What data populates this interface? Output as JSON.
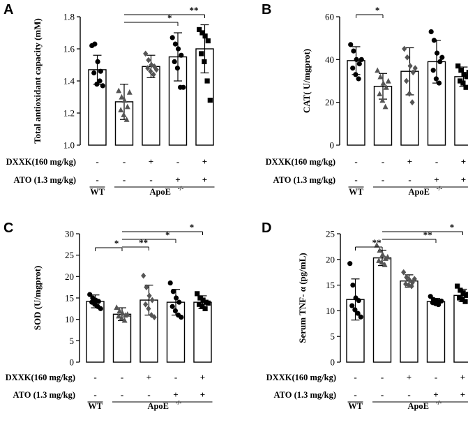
{
  "figure": {
    "row_labels": {
      "dxxk": "DXXK(160 mg/kg)",
      "ato": "ATO (1.3 mg/kg)"
    },
    "group_labels": {
      "wt": "WT",
      "apoe": "ApoE",
      "apoe_sup": "-/-"
    }
  },
  "chart_data": [
    {
      "type": "bar",
      "panel": "A",
      "title": "",
      "ylabel": "Total antioxidant capacity (mM)",
      "ylim": [
        1.0,
        1.8
      ],
      "yticks": [
        1.0,
        1.2,
        1.4,
        1.6,
        1.8
      ],
      "ytick_labels": [
        "1.0",
        "1.2",
        "1.4",
        "1.6",
        "1.8"
      ],
      "categories": [
        "WT",
        "ApoE-/-",
        "ApoE-/- + DXXK",
        "ApoE-/- + ATO",
        "ApoE-/- + DXXK + ATO"
      ],
      "dxxk_signs": [
        "-",
        "-",
        "+",
        "-",
        "+"
      ],
      "ato_signs": [
        "-",
        "-",
        "-",
        "+",
        "+"
      ],
      "values": [
        1.47,
        1.27,
        1.49,
        1.55,
        1.6
      ],
      "errors": [
        0.09,
        0.11,
        0.07,
        0.15,
        0.15
      ],
      "markers": [
        "circle",
        "triangle",
        "diamond",
        "circle",
        "square"
      ],
      "points": [
        [
          1.62,
          1.63,
          1.52,
          1.46,
          1.45,
          1.38,
          1.4,
          1.37
        ],
        [
          1.34,
          1.3,
          1.28,
          1.24,
          1.22,
          1.19,
          1.16,
          1.33
        ],
        [
          1.57,
          1.53,
          1.5,
          1.49,
          1.48,
          1.46,
          1.44,
          1.47
        ],
        [
          1.67,
          1.63,
          1.6,
          1.56,
          1.52,
          1.48,
          1.36,
          1.36
        ],
        [
          1.72,
          1.7,
          1.68,
          1.65,
          1.57,
          1.52,
          1.4,
          1.28
        ]
      ],
      "significance": [
        {
          "from": 1,
          "to": 3,
          "label": "*"
        },
        {
          "from": 1,
          "to": 4,
          "label": "**"
        }
      ]
    },
    {
      "type": "bar",
      "panel": "B",
      "title": "",
      "ylabel": "CAT( U/mgprot)",
      "ylim": [
        0,
        60
      ],
      "yticks": [
        0,
        20,
        40,
        60
      ],
      "ytick_labels": [
        "0",
        "20",
        "40",
        "60"
      ],
      "categories": [
        "WT",
        "ApoE-/-",
        "ApoE-/- + DXXK",
        "ApoE-/- + ATO",
        "ApoE-/- + DXXK + ATO"
      ],
      "dxxk_signs": [
        "-",
        "-",
        "+",
        "-",
        "+"
      ],
      "ato_signs": [
        "-",
        "-",
        "-",
        "+",
        "+"
      ],
      "values": [
        39.5,
        27.5,
        34.5,
        39.0,
        32.0
      ],
      "errors": [
        6.5,
        6.0,
        11.0,
        10.0,
        4.5
      ],
      "markers": [
        "circle",
        "triangle",
        "diamond",
        "circle",
        "square"
      ],
      "points": [
        [
          47,
          44,
          40,
          38,
          36,
          33,
          31,
          40
        ],
        [
          35,
          32,
          29,
          27,
          24,
          21,
          18,
          30
        ],
        [
          45,
          41,
          37,
          34,
          30,
          24,
          20,
          36
        ],
        [
          53,
          49,
          43,
          39,
          35,
          31,
          29,
          41
        ],
        [
          37,
          35,
          33,
          32,
          30,
          29,
          27,
          34
        ]
      ],
      "significance": [
        {
          "from": 0,
          "to": 1,
          "label": "*"
        }
      ]
    },
    {
      "type": "bar",
      "panel": "C",
      "title": "",
      "ylabel": "SOD (U/mgprot)",
      "ylim": [
        0,
        30
      ],
      "yticks": [
        0,
        5,
        10,
        15,
        20,
        25,
        30
      ],
      "ytick_labels": [
        "0",
        "5",
        "10",
        "15",
        "20",
        "25",
        "30"
      ],
      "categories": [
        "WT",
        "ApoE-/-",
        "ApoE-/- + DXXK",
        "ApoE-/- + ATO",
        "ApoE-/- + DXXK + ATO"
      ],
      "dxxk_signs": [
        "-",
        "-",
        "+",
        "-",
        "+"
      ],
      "ato_signs": [
        "-",
        "-",
        "-",
        "+",
        "+"
      ],
      "values": [
        14.2,
        11.2,
        14.5,
        14.0,
        14.0
      ],
      "errors": [
        1.5,
        1.5,
        3.5,
        3.0,
        1.5
      ],
      "markers": [
        "circle",
        "triangle",
        "diamond",
        "circle",
        "square"
      ],
      "points": [
        [
          15.8,
          15.0,
          14.5,
          14.2,
          14.0,
          13.5,
          13.0,
          12.5
        ],
        [
          12.8,
          12.0,
          11.5,
          11.0,
          10.8,
          10.3,
          9.8,
          11.2
        ],
        [
          20.2,
          17.5,
          15.5,
          14.5,
          13.5,
          12.5,
          11.0,
          10.5
        ],
        [
          18.5,
          16.5,
          15.0,
          14.0,
          13.0,
          12.0,
          11.0,
          10.5
        ],
        [
          16.0,
          15.0,
          14.5,
          14.0,
          13.5,
          13.0,
          12.5,
          13.8
        ]
      ],
      "significance": [
        {
          "from": 0,
          "to": 1,
          "label": "*"
        },
        {
          "from": 1,
          "to": 2,
          "label": "**"
        },
        {
          "from": 1,
          "to": 3,
          "label": "*"
        },
        {
          "from": 1,
          "to": 4,
          "label": "*"
        }
      ]
    },
    {
      "type": "bar",
      "panel": "D",
      "title": "",
      "ylabel": "Serum TNF- α (pg/mL)",
      "ylim": [
        0,
        25
      ],
      "yticks": [
        0,
        5,
        10,
        15,
        20,
        25
      ],
      "ytick_labels": [
        "0",
        "5",
        "10",
        "15",
        "20",
        "25"
      ],
      "categories": [
        "WT",
        "ApoE-/-",
        "ApoE-/- + DXXK",
        "ApoE-/- + ATO",
        "ApoE-/- + DXXK + ATO"
      ],
      "dxxk_signs": [
        "-",
        "-",
        "+",
        "-",
        "+"
      ],
      "ato_signs": [
        "-",
        "-",
        "-",
        "+",
        "+"
      ],
      "values": [
        12.2,
        20.3,
        15.8,
        11.8,
        13.0
      ],
      "errors": [
        4.0,
        1.5,
        1.2,
        0.6,
        1.2
      ],
      "markers": [
        "circle",
        "triangle",
        "diamond",
        "circle",
        "square"
      ],
      "points": [
        [
          19.2,
          15.0,
          12.5,
          12.0,
          11.0,
          10.2,
          9.5,
          8.8
        ],
        [
          22.8,
          21.8,
          21.0,
          20.2,
          19.8,
          19.5,
          19.0,
          20.5
        ],
        [
          17.5,
          16.5,
          16.0,
          15.5,
          15.2,
          15.0,
          14.8,
          16.2
        ],
        [
          12.8,
          12.2,
          12.0,
          11.8,
          11.6,
          11.4,
          11.2,
          11.9
        ],
        [
          14.8,
          14.0,
          13.5,
          13.0,
          12.5,
          12.2,
          11.8,
          13.2
        ]
      ],
      "significance": [
        {
          "from": 0,
          "to": 1,
          "label": "**"
        },
        {
          "from": 1,
          "to": 3,
          "label": "**"
        },
        {
          "from": 1,
          "to": 4,
          "label": "*"
        }
      ]
    }
  ]
}
